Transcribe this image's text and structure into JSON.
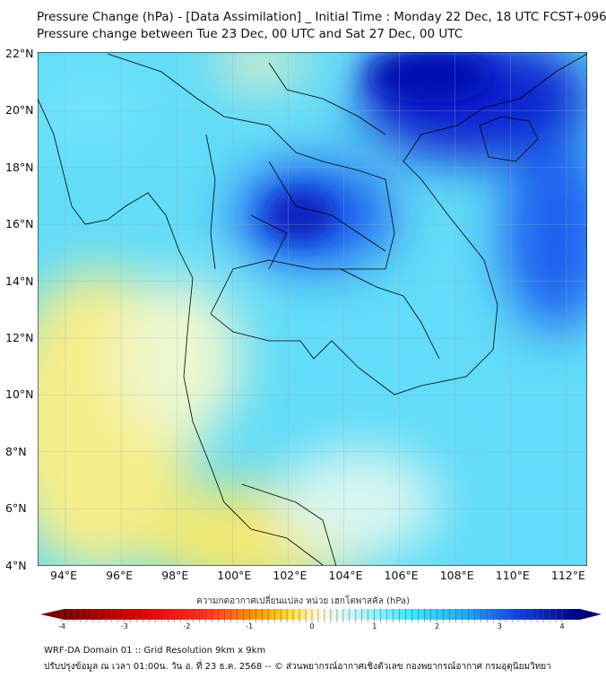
{
  "header": {
    "title_line1": "Pressure Change (hPa) - [Data Assimilation] _ Initial Time : Monday 22 Dec, 18 UTC FCST+096",
    "title_line2": "Pressure change between Tue 23 Dec, 00 UTC and Sat 27 Dec, 00 UTC"
  },
  "map": {
    "lat_labels": [
      "22°N",
      "20°N",
      "18°N",
      "16°N",
      "14°N",
      "12°N",
      "10°N",
      "8°N",
      "6°N",
      "4°N"
    ],
    "lon_labels": [
      "94°E",
      "96°E",
      "98°E",
      "100°E",
      "102°E",
      "104°E",
      "106°E",
      "108°E",
      "110°E",
      "112°E"
    ],
    "colors": {
      "dark_blue": "#0010c8",
      "blue": "#1a6af0",
      "cyan": "#3fd6f7",
      "light_cyan": "#aef0fb",
      "pale": "#f4fbe8",
      "yellow": "#f6ec7a"
    }
  },
  "colorbar": {
    "title": "ความกดอากาศเปลี่ยนแปลง หน่วย เฮกโตพาสคัล (hPa)",
    "ticks": [
      "-4",
      "-3",
      "-2",
      "-1",
      "0",
      "1",
      "2",
      "3",
      "4"
    ],
    "range": [
      -4,
      4
    ]
  },
  "footer": {
    "line1": "WRF-DA Domain 01 :: Grid Resolution 9km x 9km",
    "line2": "ปรับปรุงข้อมูล ณ เวลา 01:00น. วัน อ. ที่ 23 ธ.ค. 2568 -- © ส่วนพยากรณ์อากาศเชิงตัวเลข กองพยากรณ์อากาศ กรมอุตุนิยมวิทยา"
  }
}
